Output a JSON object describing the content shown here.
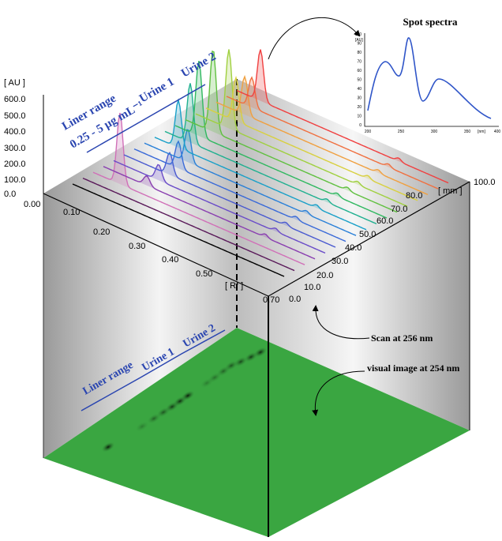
{
  "spectrum": {
    "title": "Spot spectra",
    "y_unit": "[AU]",
    "yticks": [
      "100",
      "90",
      "80",
      "70",
      "60",
      "50",
      "40",
      "30",
      "20",
      "10",
      "0"
    ],
    "xticks": [
      "200",
      "250",
      "300",
      "350",
      "[nm]",
      "400"
    ]
  },
  "axes": {
    "au_label": "[ AU ]",
    "au_ticks": [
      "600.0",
      "500.0",
      "400.0",
      "300.0",
      "200.0",
      "100.0",
      "0.0"
    ],
    "rf_label": "[ Rf ]",
    "rf_ticks": [
      "0.00",
      "0.10",
      "0.20",
      "0.30",
      "0.40",
      "0.50",
      "0.70"
    ],
    "mm_label": "[ mm ]",
    "mm_ticks": [
      "0.0",
      "10.0",
      "20.0",
      "30.0",
      "40.0",
      "50.0",
      "60.0",
      "70.0",
      "80.0",
      "100.0"
    ]
  },
  "annotations": {
    "range_top": "Liner range",
    "conc": "0.25 - 5 µg mL⁻¹",
    "urine1_top": "Urine 1",
    "urine2_top": "Urine 2",
    "range_floor": "Liner range",
    "urine1_floor": "Urine 1",
    "urine2_floor": "Urine 2",
    "scan": "Scan at 256 nm",
    "visual": "visual image at 254 nm"
  }
}
